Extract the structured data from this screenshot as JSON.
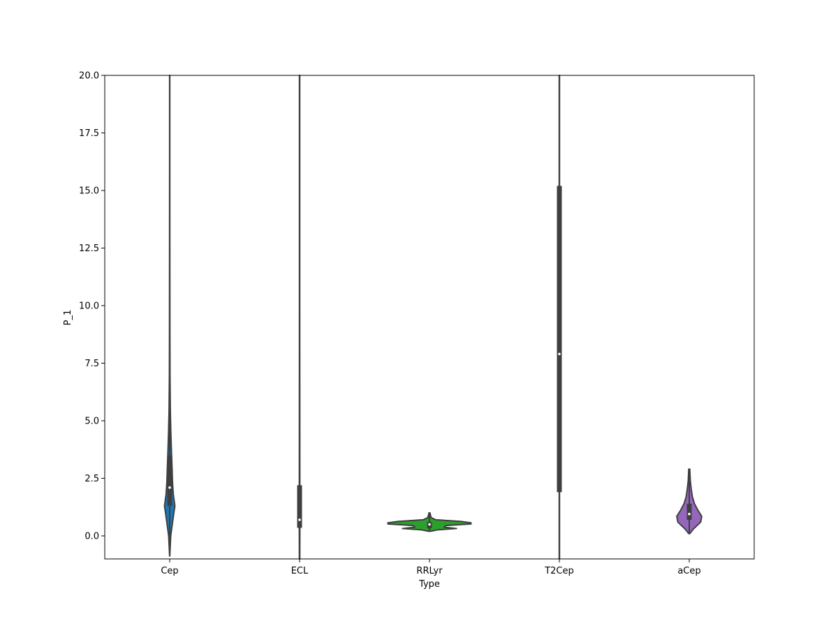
{
  "chart_data": {
    "type": "violin",
    "xlabel": "Type",
    "ylabel": "P_1",
    "ylim": [
      -1.0,
      20.0
    ],
    "yticks": [
      "0.0",
      "2.5",
      "5.0",
      "7.5",
      "10.0",
      "12.5",
      "15.0",
      "17.5",
      "20.0"
    ],
    "ytick_values": [
      0.0,
      2.5,
      5.0,
      7.5,
      10.0,
      12.5,
      15.0,
      17.5,
      20.0
    ],
    "categories": [
      "Cep",
      "ECL",
      "RRLyr",
      "T2Cep",
      "aCep"
    ],
    "colors": [
      "#1f77b4",
      "#ff7f0e",
      "#2ca02c",
      "#d62728",
      "#9467bd"
    ],
    "grid": false,
    "legend": "none",
    "series": [
      {
        "name": "Cep",
        "median": 2.1,
        "q1": 1.3,
        "q3": 3.5,
        "whisker_low": -0.9,
        "whisker_high": 20.0,
        "density": [
          [
            -0.85,
            0.002
          ],
          [
            0.0,
            0.02
          ],
          [
            0.5,
            0.05
          ],
          [
            1.0,
            0.08
          ],
          [
            1.3,
            0.1
          ],
          [
            1.8,
            0.07
          ],
          [
            2.3,
            0.055
          ],
          [
            3.0,
            0.045
          ],
          [
            3.6,
            0.035
          ],
          [
            4.5,
            0.022
          ],
          [
            5.5,
            0.012
          ],
          [
            7.0,
            0.006
          ],
          [
            9.0,
            0.004
          ],
          [
            12.0,
            0.003
          ],
          [
            16.0,
            0.002
          ],
          [
            20.0,
            0.002
          ]
        ]
      },
      {
        "name": "ECL",
        "median": 0.7,
        "q1": 0.35,
        "q3": 2.2,
        "whisker_low": -1.0,
        "whisker_high": 20.0,
        "density": [
          [
            -1.0,
            0.004
          ],
          [
            0.0,
            0.005
          ],
          [
            0.7,
            0.006
          ],
          [
            2.0,
            0.005
          ],
          [
            5.0,
            0.004
          ],
          [
            10.0,
            0.003
          ],
          [
            20.0,
            0.003
          ]
        ]
      },
      {
        "name": "RRLyr",
        "median": 0.5,
        "q1": 0.33,
        "q3": 0.6,
        "whisker_low": 0.2,
        "whisker_high": 1.0,
        "density": [
          [
            0.2,
            0.02
          ],
          [
            0.26,
            0.15
          ],
          [
            0.32,
            0.52
          ],
          [
            0.38,
            0.28
          ],
          [
            0.45,
            0.32
          ],
          [
            0.52,
            0.8
          ],
          [
            0.57,
            0.8
          ],
          [
            0.63,
            0.6
          ],
          [
            0.7,
            0.12
          ],
          [
            0.8,
            0.03
          ],
          [
            1.0,
            0.01
          ]
        ]
      },
      {
        "name": "T2Cep",
        "median": 7.9,
        "q1": 1.9,
        "q3": 15.2,
        "whisker_low": -1.0,
        "whisker_high": 20.0,
        "density": [
          [
            -1.0,
            0.003
          ],
          [
            5.0,
            0.003
          ],
          [
            10.0,
            0.003
          ],
          [
            15.0,
            0.003
          ],
          [
            20.0,
            0.003
          ]
        ]
      },
      {
        "name": "aCep",
        "median": 0.95,
        "q1": 0.7,
        "q3": 1.4,
        "whisker_low": 0.1,
        "whisker_high": 2.9,
        "density": [
          [
            0.1,
            0.01
          ],
          [
            0.3,
            0.08
          ],
          [
            0.6,
            0.22
          ],
          [
            0.85,
            0.24
          ],
          [
            1.1,
            0.17
          ],
          [
            1.4,
            0.1
          ],
          [
            1.7,
            0.06
          ],
          [
            2.0,
            0.04
          ],
          [
            2.4,
            0.02
          ],
          [
            2.9,
            0.01
          ]
        ]
      }
    ]
  }
}
